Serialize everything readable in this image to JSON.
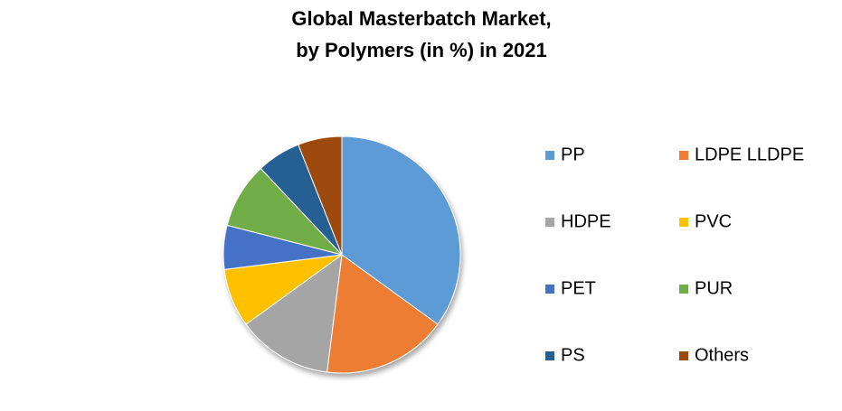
{
  "chart_data": {
    "type": "pie",
    "title": [
      "Global Masterbatch Market,",
      "by Polymers (in %) in 2021"
    ],
    "categories": [
      "PP",
      "LDPE LLDPE",
      "HDPE",
      "PVC",
      "PET",
      "PUR",
      "PS",
      "Others"
    ],
    "values": [
      35,
      17,
      13,
      8,
      6,
      9,
      6,
      6
    ],
    "colors": [
      "#5b9bd5",
      "#ed7d31",
      "#a5a5a5",
      "#ffc000",
      "#4472c4",
      "#70ad47",
      "#255e91",
      "#9e480e"
    ],
    "legend": "right"
  }
}
